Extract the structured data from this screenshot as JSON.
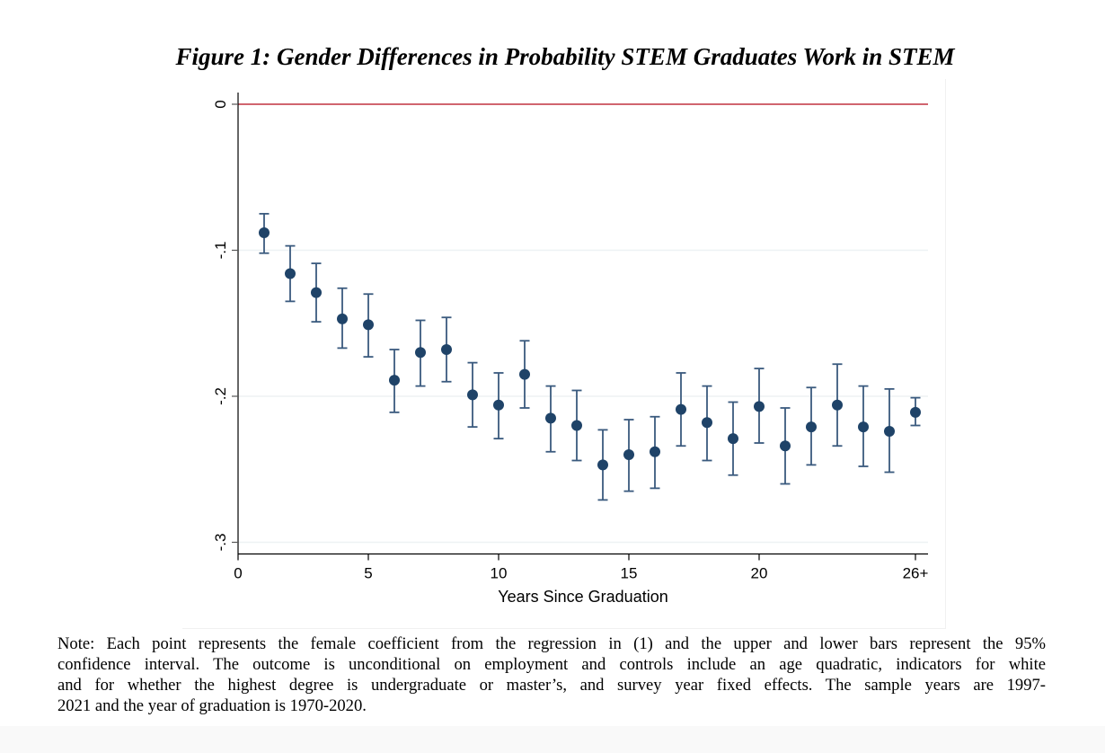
{
  "figure": {
    "title": "Figure 1: Gender Differences in Probability STEM Graduates Work in STEM"
  },
  "note": {
    "lines": [
      "Note: Each point represents the female coefficient from the regression in (1) and the upper and lower bars represent the 95%",
      "confidence interval. The outcome is unconditional on employment and controls include an age quadratic, indicators for white",
      "and for whether the highest degree is undergraduate or master’s, and survey year fixed effects. The sample years are 1997-",
      "2021 and the year of graduation is 1970-2020."
    ]
  },
  "colors": {
    "marker": "#1f4368",
    "ci": "#3a5a7e",
    "reference_line": "#c0303f",
    "axis": "#000000",
    "grid": "#eef2f4"
  },
  "chart_data": {
    "type": "scatter",
    "subtype": "coefficient plot with 95% confidence intervals",
    "title": "Figure 1: Gender Differences in Probability STEM Graduates Work in STEM",
    "xlabel": "Years Since Graduation",
    "ylabel": "",
    "xlim": [
      0,
      26.5
    ],
    "ylim": [
      -0.308,
      0.009
    ],
    "xticks": [
      {
        "value": 0,
        "label": "0"
      },
      {
        "value": 5,
        "label": "5"
      },
      {
        "value": 10,
        "label": "10"
      },
      {
        "value": 15,
        "label": "15"
      },
      {
        "value": 20,
        "label": "20"
      },
      {
        "value": 26,
        "label": "26+"
      }
    ],
    "yticks": [
      {
        "value": 0,
        "label": "0"
      },
      {
        "value": -0.1,
        "label": "-.1"
      },
      {
        "value": -0.2,
        "label": "-.2"
      },
      {
        "value": -0.3,
        "label": "-.3"
      }
    ],
    "grid": "horizontal",
    "reference_line": {
      "y": 0
    },
    "points": [
      {
        "x": 1,
        "y": -0.088,
        "lo": -0.102,
        "hi": -0.075
      },
      {
        "x": 2,
        "y": -0.116,
        "lo": -0.135,
        "hi": -0.097
      },
      {
        "x": 3,
        "y": -0.129,
        "lo": -0.149,
        "hi": -0.109
      },
      {
        "x": 4,
        "y": -0.147,
        "lo": -0.167,
        "hi": -0.126
      },
      {
        "x": 5,
        "y": -0.151,
        "lo": -0.173,
        "hi": -0.13
      },
      {
        "x": 6,
        "y": -0.189,
        "lo": -0.211,
        "hi": -0.168
      },
      {
        "x": 7,
        "y": -0.17,
        "lo": -0.193,
        "hi": -0.148
      },
      {
        "x": 8,
        "y": -0.168,
        "lo": -0.19,
        "hi": -0.146
      },
      {
        "x": 9,
        "y": -0.199,
        "lo": -0.221,
        "hi": -0.177
      },
      {
        "x": 10,
        "y": -0.206,
        "lo": -0.229,
        "hi": -0.184
      },
      {
        "x": 11,
        "y": -0.185,
        "lo": -0.208,
        "hi": -0.162
      },
      {
        "x": 12,
        "y": -0.215,
        "lo": -0.238,
        "hi": -0.193
      },
      {
        "x": 13,
        "y": -0.22,
        "lo": -0.244,
        "hi": -0.196
      },
      {
        "x": 14,
        "y": -0.247,
        "lo": -0.271,
        "hi": -0.223
      },
      {
        "x": 15,
        "y": -0.24,
        "lo": -0.265,
        "hi": -0.216
      },
      {
        "x": 16,
        "y": -0.238,
        "lo": -0.263,
        "hi": -0.214
      },
      {
        "x": 17,
        "y": -0.209,
        "lo": -0.234,
        "hi": -0.184
      },
      {
        "x": 18,
        "y": -0.218,
        "lo": -0.244,
        "hi": -0.193
      },
      {
        "x": 19,
        "y": -0.229,
        "lo": -0.254,
        "hi": -0.204
      },
      {
        "x": 20,
        "y": -0.207,
        "lo": -0.232,
        "hi": -0.181
      },
      {
        "x": 21,
        "y": -0.234,
        "lo": -0.26,
        "hi": -0.208
      },
      {
        "x": 22,
        "y": -0.221,
        "lo": -0.247,
        "hi": -0.194
      },
      {
        "x": 23,
        "y": -0.206,
        "lo": -0.234,
        "hi": -0.178
      },
      {
        "x": 24,
        "y": -0.221,
        "lo": -0.248,
        "hi": -0.193
      },
      {
        "x": 25,
        "y": -0.224,
        "lo": -0.252,
        "hi": -0.195
      },
      {
        "x": 26,
        "y": -0.211,
        "lo": -0.22,
        "hi": -0.201
      }
    ]
  }
}
